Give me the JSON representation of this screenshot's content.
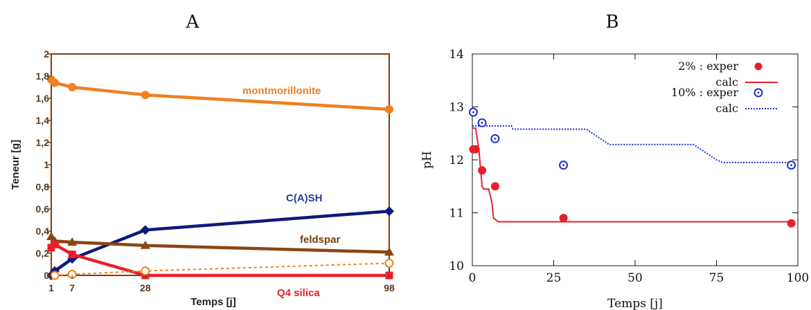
{
  "chart_data": [
    {
      "type": "line",
      "panel_label": "A",
      "xlabel": "Temps [j]",
      "ylabel": "Teneur [g]",
      "xlim": [
        1,
        98
      ],
      "ylim": [
        0,
        2
      ],
      "x_ticks": [
        1,
        7,
        28,
        98
      ],
      "x_tick_labels": [
        "1",
        "7",
        "28",
        "98"
      ],
      "y_ticks": [
        0,
        0.2,
        0.4,
        0.6,
        0.8,
        1,
        1.2,
        1.4,
        1.6,
        1.8,
        2
      ],
      "y_tick_labels": [
        "0",
        "0,2",
        "0,4",
        "0,6",
        "0,8",
        "1",
        "1,2",
        "1,4",
        "1,6",
        "1,8",
        "2"
      ],
      "grid": false,
      "series": [
        {
          "name": "montmorillonite",
          "color": "#f07f1e",
          "marker": "circle",
          "style": "solid",
          "x": [
            1,
            2,
            7,
            28,
            98
          ],
          "y": [
            1.77,
            1.74,
            1.7,
            1.63,
            1.5
          ]
        },
        {
          "name": "C(A)SH",
          "color": "#0e1a7a",
          "marker": "diamond",
          "style": "solid",
          "x": [
            1,
            2,
            7,
            28,
            98
          ],
          "y": [
            0.0,
            0.04,
            0.15,
            0.41,
            0.58
          ]
        },
        {
          "name": "feldspar",
          "color": "#8b4513",
          "marker": "triangle",
          "style": "solid",
          "x": [
            1,
            2,
            7,
            28,
            98
          ],
          "y": [
            0.35,
            0.31,
            0.3,
            0.27,
            0.21
          ]
        },
        {
          "name": "Q4 silica",
          "color": "#e8202a",
          "marker": "square",
          "style": "solid",
          "x": [
            1,
            2,
            7,
            28,
            98
          ],
          "y": [
            0.25,
            0.28,
            0.19,
            0.0,
            0.0
          ]
        },
        {
          "name": "",
          "color": "#f07f1e",
          "marker": "open-circle",
          "style": "dashed",
          "x": [
            2,
            7,
            28,
            98
          ],
          "y": [
            0.0,
            0.01,
            0.04,
            0.11
          ]
        }
      ]
    },
    {
      "type": "scatter",
      "panel_label": "B",
      "xlabel": "Temps [j]",
      "ylabel": "pH",
      "xlim": [
        0,
        100
      ],
      "ylim": [
        10,
        14
      ],
      "x_ticks": [
        0,
        25,
        50,
        75,
        100
      ],
      "x_tick_labels": [
        "0",
        "25",
        "50",
        "75",
        "100"
      ],
      "y_ticks": [
        10,
        11,
        12,
        13,
        14
      ],
      "y_tick_labels": [
        "10",
        "11",
        "12",
        "13",
        "14"
      ],
      "grid": false,
      "legend_position": "top-right",
      "series": [
        {
          "name": "2% : exper",
          "color": "#e8202a",
          "marker": "filled-circle",
          "x": [
            0.3,
            1,
            3,
            7,
            28,
            98
          ],
          "y": [
            12.2,
            12.2,
            11.8,
            11.5,
            10.9,
            10.8
          ]
        },
        {
          "name": "calc",
          "color": "#e8202a",
          "style": "solid",
          "x": [
            0,
            1,
            2,
            3,
            3.5,
            5,
            6,
            6.5,
            8,
            98
          ],
          "y": [
            12.6,
            12.6,
            12.2,
            11.5,
            11.45,
            11.45,
            11.2,
            10.9,
            10.83,
            10.83
          ]
        },
        {
          "name": "10% : exper",
          "color": "#1c2fd0",
          "marker": "dotted-circle",
          "x": [
            0.3,
            3,
            7,
            28,
            98
          ],
          "y": [
            12.9,
            12.7,
            12.4,
            11.9,
            11.9
          ]
        },
        {
          "name": "calc",
          "color": "#1c2fd0",
          "style": "dotted",
          "x": [
            0,
            12,
            12.5,
            35,
            42,
            68,
            75,
            77,
            98
          ],
          "y": [
            12.64,
            12.64,
            12.58,
            12.58,
            12.29,
            12.29,
            12.0,
            11.95,
            11.95
          ]
        }
      ]
    }
  ]
}
